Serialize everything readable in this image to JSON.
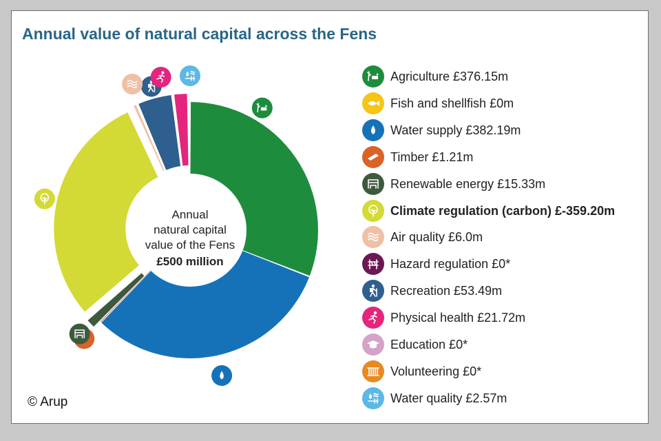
{
  "title": "Annual value of natural capital across the Fens",
  "copyright": "© Arup",
  "center": {
    "line1": "Annual",
    "line2": "natural capital",
    "line3": "value of the Fens",
    "line4": "£500 million"
  },
  "chart_data": {
    "type": "donut",
    "title": "Annual value of natural capital across the Fens",
    "total_label": "£500 million",
    "units": "£m",
    "series": [
      {
        "name": "Agriculture",
        "label": "Agriculture £376.15m",
        "value": 376.15,
        "color": "#1e8c3d",
        "icon": "agriculture-icon",
        "explode": false,
        "bold": false
      },
      {
        "name": "Fish and shellfish",
        "label": "Fish and shellfish £0m",
        "value": 0,
        "color": "#f5c518",
        "icon": "fish-icon",
        "explode": false,
        "bold": false
      },
      {
        "name": "Water supply",
        "label": "Water supply £382.19m",
        "value": 382.19,
        "color": "#1672b8",
        "icon": "water-drop-icon",
        "explode": false,
        "bold": false
      },
      {
        "name": "Timber",
        "label": "Timber £1.21m",
        "value": 1.21,
        "color": "#d96227",
        "icon": "timber-icon",
        "explode": false,
        "bold": false
      },
      {
        "name": "Renewable energy",
        "label": "Renewable energy £15.33m",
        "value": 15.33,
        "color": "#3e5a3e",
        "icon": "renewable-energy-icon",
        "explode": true,
        "bold": false
      },
      {
        "name": "Climate regulation (carbon)",
        "label": "Climate regulation (carbon) £-359.20m",
        "value": -359.2,
        "color": "#d3da35",
        "icon": "tree-icon",
        "explode": true,
        "bold": true
      },
      {
        "name": "Air quality",
        "label": "Air quality £6.0m",
        "value": 6.0,
        "color": "#efc0a5",
        "icon": "air-quality-icon",
        "explode": true,
        "bold": false
      },
      {
        "name": "Hazard regulation",
        "label": "Hazard regulation £0*",
        "value": 0,
        "color": "#6b1852",
        "icon": "hazard-barrier-icon",
        "explode": false,
        "bold": false
      },
      {
        "name": "Recreation",
        "label": "Recreation £53.49m",
        "value": 53.49,
        "color": "#2f5f8e",
        "icon": "hiker-icon",
        "explode": true,
        "bold": false
      },
      {
        "name": "Physical health",
        "label": "Physical health £21.72m",
        "value": 21.72,
        "color": "#e5257d",
        "icon": "runner-icon",
        "explode": true,
        "bold": false
      },
      {
        "name": "Education",
        "label": "Education £0*",
        "value": 0,
        "color": "#d3a3c9",
        "icon": "graduation-cap-icon",
        "explode": false,
        "bold": false
      },
      {
        "name": "Volunteering",
        "label": "Volunteering £0*",
        "value": 0,
        "color": "#e88a23",
        "icon": "volunteering-icon",
        "explode": false,
        "bold": false
      },
      {
        "name": "Water quality",
        "label": "Water quality £2.57m",
        "value": 2.57,
        "color": "#5cb8e6",
        "icon": "water-quality-icon",
        "explode": true,
        "bold": false
      }
    ]
  }
}
